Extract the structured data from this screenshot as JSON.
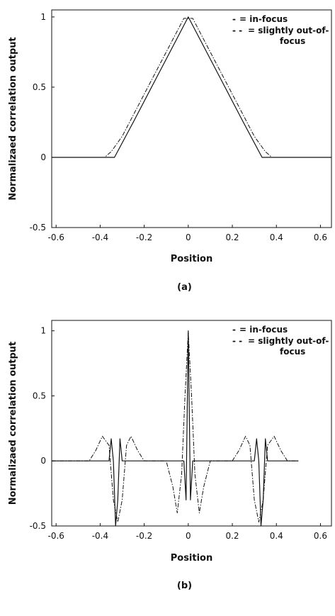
{
  "chart_data": [
    {
      "type": "line",
      "caption": "(a)",
      "xlabel": "Position",
      "ylabel": "Normalizaed correlation output",
      "xlim": [
        -0.62,
        0.65
      ],
      "ylim": [
        -0.5,
        1.05
      ],
      "xticks": [
        "-0.6",
        "-0.4",
        "-0.2",
        "0",
        "0.2",
        "0.4",
        "0.6"
      ],
      "xtick_values": [
        -0.6,
        -0.4,
        -0.2,
        0,
        0.2,
        0.4,
        0.6
      ],
      "yticks": [
        "-0.5",
        "0",
        "0.5",
        "1"
      ],
      "ytick_values": [
        -0.5,
        0,
        0.5,
        1
      ],
      "legend": {
        "placement": "top-right",
        "items": [
          {
            "marker": "-",
            "text": "= in-focus"
          },
          {
            "marker": "- -",
            "text": "= slightly out-of-",
            "text2": "focus"
          }
        ]
      },
      "series": [
        {
          "name": "in-focus",
          "style": "solid",
          "color": "#111111",
          "x": [
            -0.62,
            -0.335,
            -0.25,
            -0.15,
            -0.05,
            0,
            0.05,
            0.15,
            0.25,
            0.335,
            0.65
          ],
          "y": [
            0,
            0,
            0.25,
            0.55,
            0.85,
            1.0,
            0.85,
            0.55,
            0.25,
            0,
            0
          ]
        },
        {
          "name": "slightly out-of-focus",
          "style": "dashdot",
          "color": "#111111",
          "x": [
            -0.62,
            -0.38,
            -0.35,
            -0.3,
            -0.2,
            -0.1,
            -0.02,
            0.02,
            0.1,
            0.2,
            0.3,
            0.35,
            0.38,
            0.65
          ],
          "y": [
            0,
            0,
            0.04,
            0.15,
            0.45,
            0.75,
            0.99,
            0.99,
            0.75,
            0.45,
            0.15,
            0.04,
            0,
            0
          ]
        }
      ]
    },
    {
      "type": "line",
      "caption": "(b)",
      "xlabel": "Position",
      "ylabel": "Normalizaed correlation output",
      "xlim": [
        -0.62,
        0.65
      ],
      "ylim": [
        -0.5,
        1.08
      ],
      "xticks": [
        "-0.6",
        "-0.4",
        "-0.2",
        "0",
        "0.2",
        "0.4",
        "0.6"
      ],
      "xtick_values": [
        -0.6,
        -0.4,
        -0.2,
        0,
        0.2,
        0.4,
        0.6
      ],
      "yticks": [
        "-0.5",
        "0",
        "0.5",
        "1"
      ],
      "ytick_values": [
        -0.5,
        0,
        0.5,
        1
      ],
      "legend": {
        "placement": "top-right",
        "items": [
          {
            "marker": "-",
            "text": "= in-focus"
          },
          {
            "marker": "- -",
            "text": "= slightly out-of-",
            "text2": "focus"
          }
        ]
      },
      "series": [
        {
          "name": "in-focus",
          "style": "solid",
          "color": "#111111",
          "x": [
            -0.62,
            -0.36,
            -0.35,
            -0.34,
            -0.33,
            -0.32,
            -0.31,
            -0.3,
            -0.29,
            -0.02,
            -0.01,
            0,
            0.01,
            0.02,
            0.29,
            0.3,
            0.31,
            0.32,
            0.33,
            0.34,
            0.35,
            0.36,
            0.5
          ],
          "y": [
            0,
            0,
            0.17,
            0,
            -0.5,
            -0.3,
            0.17,
            0,
            0,
            0,
            -0.3,
            1.0,
            -0.3,
            0,
            0,
            0,
            0.17,
            0,
            -0.5,
            -0.3,
            0.17,
            0,
            0
          ]
        },
        {
          "name": "slightly out-of-focus",
          "style": "dashdot",
          "color": "#111111",
          "x": [
            -0.62,
            -0.45,
            -0.42,
            -0.39,
            -0.36,
            -0.34,
            -0.32,
            -0.3,
            -0.28,
            -0.26,
            -0.23,
            -0.2,
            -0.1,
            -0.07,
            -0.05,
            -0.03,
            -0.015,
            0,
            0.015,
            0.03,
            0.05,
            0.07,
            0.1,
            0.2,
            0.23,
            0.26,
            0.28,
            0.3,
            0.32,
            0.34,
            0.36,
            0.39,
            0.42,
            0.45,
            0.5
          ],
          "y": [
            0,
            0,
            0.08,
            0.19,
            0.12,
            -0.3,
            -0.47,
            -0.3,
            0.12,
            0.19,
            0.08,
            0,
            0,
            -0.2,
            -0.4,
            -0.1,
            0.5,
            0.99,
            0.5,
            -0.1,
            -0.4,
            -0.2,
            0,
            0,
            0.08,
            0.19,
            0.12,
            -0.3,
            -0.47,
            -0.3,
            0.12,
            0.19,
            0.08,
            0,
            0
          ]
        }
      ]
    }
  ]
}
